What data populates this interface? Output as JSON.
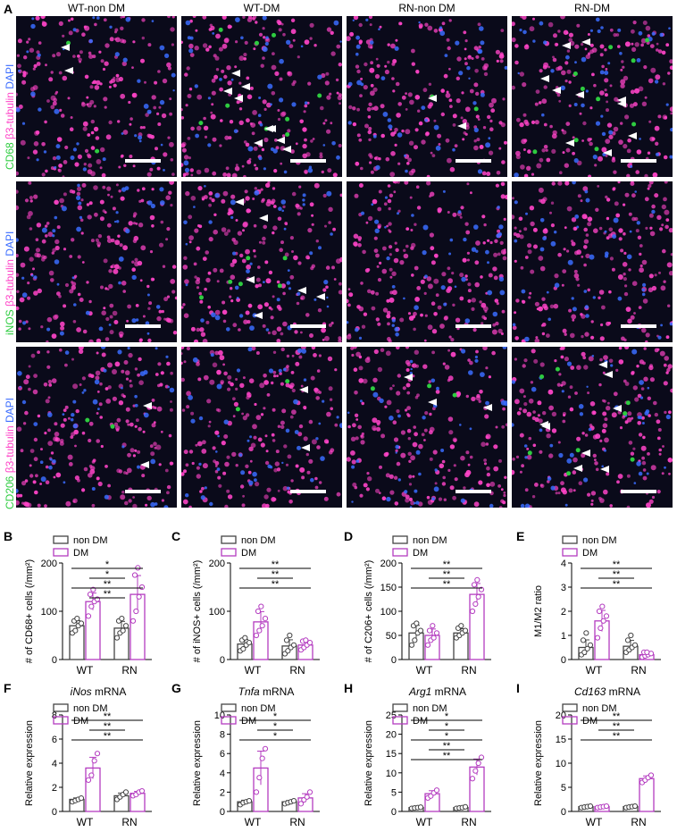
{
  "panel_letters": [
    "A",
    "B",
    "C",
    "D",
    "E",
    "F",
    "G",
    "H",
    "I"
  ],
  "column_headers": [
    "WT-non DM",
    "WT-DM",
    "RN-non DM",
    "RN-DM"
  ],
  "row_labels": [
    {
      "marker": "CD68",
      "rest1": " ",
      "stain": "β3-tubulin",
      "rest2": " ",
      "dapi": "DAPI"
    },
    {
      "marker": "iNOS",
      "rest1": " ",
      "stain": "β3-tubulin",
      "rest2": " ",
      "dapi": "DAPI"
    },
    {
      "marker": "CD206",
      "rest1": " ",
      "stain": "β3-tubulin",
      "rest2": " ",
      "dapi": "DAPI"
    }
  ],
  "colors": {
    "nonDM": "#444444",
    "DM": "#b43cc0",
    "marker": "#2ecc40",
    "tubulin": "#ff44c8",
    "dapi": "#3a6cff"
  },
  "chart_data": [
    {
      "id": "B",
      "type": "bar",
      "ylabel": "# of CD68+ cells (/mm²)",
      "ylim": [
        0,
        200
      ],
      "yticks": [
        0,
        100,
        200
      ],
      "categories": [
        "WT",
        "RN"
      ],
      "series": [
        {
          "name": "non DM",
          "values": [
            70,
            65
          ],
          "points": [
            [
              55,
              60,
              70,
              75,
              80,
              85
            ],
            [
              45,
              55,
              60,
              70,
              80,
              85
            ]
          ]
        },
        {
          "name": "DM",
          "values": [
            120,
            135
          ],
          "points": [
            [
              90,
              110,
              120,
              125,
              135,
              145
            ],
            [
              80,
              100,
              130,
              150,
              175,
              190
            ]
          ]
        }
      ],
      "sig": [
        "*",
        "*",
        "**",
        "**"
      ],
      "legend": [
        "non DM",
        "DM"
      ]
    },
    {
      "id": "C",
      "type": "bar",
      "ylabel": "# of iNOS+ cells (/mm²)",
      "ylim": [
        0,
        200
      ],
      "yticks": [
        0,
        100,
        200
      ],
      "categories": [
        "WT",
        "RN"
      ],
      "series": [
        {
          "name": "non DM",
          "values": [
            32,
            28
          ],
          "points": [
            [
              18,
              22,
              30,
              35,
              40,
              45
            ],
            [
              12,
              18,
              25,
              30,
              40,
              50
            ]
          ]
        },
        {
          "name": "DM",
          "values": [
            78,
            30
          ],
          "points": [
            [
              50,
              60,
              70,
              85,
              100,
              110
            ],
            [
              20,
              25,
              30,
              35,
              38,
              40
            ]
          ]
        }
      ],
      "sig": [
        "**",
        "**",
        "**"
      ],
      "legend": [
        "non DM",
        "DM"
      ]
    },
    {
      "id": "D",
      "type": "bar",
      "ylabel": "# of C206+ cells (/mm²)",
      "ylim": [
        0,
        200
      ],
      "yticks": [
        0,
        50,
        100,
        150,
        200
      ],
      "categories": [
        "WT",
        "RN"
      ],
      "series": [
        {
          "name": "non DM",
          "values": [
            55,
            55
          ],
          "points": [
            [
              30,
              40,
              55,
              60,
              70,
              75
            ],
            [
              45,
              50,
              55,
              60,
              65,
              70
            ]
          ]
        },
        {
          "name": "DM",
          "values": [
            50,
            135
          ],
          "points": [
            [
              30,
              40,
              45,
              55,
              60,
              70
            ],
            [
              100,
              115,
              130,
              145,
              155,
              165
            ]
          ]
        }
      ],
      "sig": [
        "**",
        "**",
        "**"
      ],
      "legend": [
        "non DM",
        "DM"
      ]
    },
    {
      "id": "E",
      "type": "bar",
      "ylabel": "M1/M2 ratio",
      "ylim": [
        0,
        4
      ],
      "yticks": [
        0,
        1,
        2,
        3,
        4
      ],
      "categories": [
        "WT",
        "RN"
      ],
      "series": [
        {
          "name": "non DM",
          "values": [
            0.5,
            0.55
          ],
          "points": [
            [
              0.2,
              0.3,
              0.45,
              0.6,
              0.8,
              1.1
            ],
            [
              0.3,
              0.4,
              0.5,
              0.6,
              0.8,
              1.0
            ]
          ]
        },
        {
          "name": "DM",
          "values": [
            1.6,
            0.2
          ],
          "points": [
            [
              0.9,
              1.3,
              1.6,
              1.8,
              2.0,
              2.2
            ],
            [
              0.1,
              0.15,
              0.2,
              0.25,
              0.3,
              0.3
            ]
          ]
        }
      ],
      "sig": [
        "**",
        "**",
        "**"
      ],
      "legend": [
        "non DM",
        "DM"
      ]
    },
    {
      "id": "F",
      "type": "bar",
      "title": "iNos",
      "title_suffix": " mRNA",
      "ylabel": "Relative expression",
      "ylim": [
        0,
        8
      ],
      "yticks": [
        0,
        2,
        4,
        6,
        8
      ],
      "categories": [
        "WT",
        "RN"
      ],
      "series": [
        {
          "name": "non DM",
          "values": [
            1.0,
            1.3
          ],
          "points": [
            [
              0.8,
              0.9,
              1.0,
              1.1
            ],
            [
              1.0,
              1.2,
              1.4,
              1.6
            ]
          ]
        },
        {
          "name": "DM",
          "values": [
            3.6,
            1.5
          ],
          "points": [
            [
              2.6,
              3.0,
              4.2,
              4.8
            ],
            [
              1.3,
              1.4,
              1.6,
              1.7
            ]
          ]
        }
      ],
      "sig": [
        "**",
        "**",
        "**"
      ],
      "legend": [
        "non DM",
        "DM"
      ]
    },
    {
      "id": "G",
      "type": "bar",
      "title": "Tnfa",
      "title_suffix": " mRNA",
      "ylabel": "Relative expression",
      "ylim": [
        0,
        10
      ],
      "yticks": [
        0,
        2,
        4,
        6,
        8,
        10
      ],
      "categories": [
        "WT",
        "RN"
      ],
      "series": [
        {
          "name": "non DM",
          "values": [
            1.0,
            1.0
          ],
          "points": [
            [
              0.7,
              0.9,
              1.0,
              1.1
            ],
            [
              0.8,
              0.9,
              1.0,
              1.1
            ]
          ]
        },
        {
          "name": "DM",
          "values": [
            4.5,
            1.4
          ],
          "points": [
            [
              2.0,
              3.5,
              5.5,
              6.5
            ],
            [
              0.8,
              1.2,
              1.5,
              2.0
            ]
          ]
        }
      ],
      "sig": [
        "*",
        "*",
        "*"
      ],
      "legend": [
        "non DM",
        "DM"
      ]
    },
    {
      "id": "H",
      "type": "bar",
      "title": "Arg1",
      "title_suffix": " mRNA",
      "ylabel": "Relative expression",
      "ylim": [
        0,
        25
      ],
      "yticks": [
        0,
        5,
        10,
        15,
        20,
        25
      ],
      "categories": [
        "WT",
        "RN"
      ],
      "series": [
        {
          "name": "non DM",
          "values": [
            1.0,
            1.0
          ],
          "points": [
            [
              0.8,
              0.9,
              1.0,
              1.1
            ],
            [
              0.8,
              0.9,
              1.0,
              1.2
            ]
          ]
        },
        {
          "name": "DM",
          "values": [
            4.6,
            11.5
          ],
          "points": [
            [
              3.5,
              4.0,
              4.8,
              5.5
            ],
            [
              8.5,
              10.5,
              12.5,
              14.0
            ]
          ]
        }
      ],
      "sig": [
        "*",
        "*",
        "*",
        "**",
        "**"
      ],
      "legend": [
        "non DM",
        "DM"
      ]
    },
    {
      "id": "I",
      "type": "bar",
      "title": "Cd163",
      "title_suffix": " mRNA",
      "ylabel": "Relative expression",
      "ylim": [
        0,
        20
      ],
      "yticks": [
        0,
        5,
        10,
        15,
        20
      ],
      "categories": [
        "WT",
        "RN"
      ],
      "series": [
        {
          "name": "non DM",
          "values": [
            1.0,
            1.0
          ],
          "points": [
            [
              0.8,
              0.9,
              1.0,
              1.1
            ],
            [
              0.8,
              0.9,
              1.0,
              1.1
            ]
          ]
        },
        {
          "name": "DM",
          "values": [
            1.0,
            6.8
          ],
          "points": [
            [
              0.8,
              0.9,
              1.0,
              1.1
            ],
            [
              6.0,
              6.5,
              7.0,
              7.5
            ]
          ]
        }
      ],
      "sig": [
        "**",
        "**",
        "**"
      ],
      "legend": [
        "non DM",
        "DM"
      ]
    }
  ]
}
